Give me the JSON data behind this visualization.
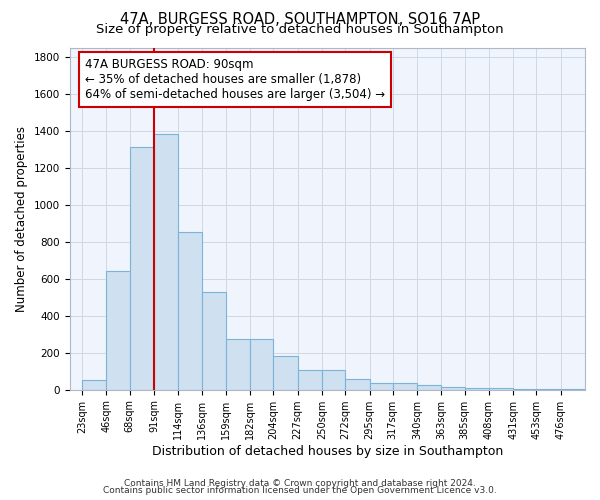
{
  "title": "47A, BURGESS ROAD, SOUTHAMPTON, SO16 7AP",
  "subtitle": "Size of property relative to detached houses in Southampton",
  "xlabel": "Distribution of detached houses by size in Southampton",
  "ylabel": "Number of detached properties",
  "footer_line1": "Contains HM Land Registry data © Crown copyright and database right 2024.",
  "footer_line2": "Contains public sector information licensed under the Open Government Licence v3.0.",
  "bar_color": "#cfe0f0",
  "bar_edge_color": "#7ab4d8",
  "bar_heights": [
    50,
    640,
    1310,
    1380,
    850,
    530,
    275,
    275,
    185,
    105,
    105,
    60,
    35,
    35,
    25,
    15,
    10,
    10,
    5,
    5,
    5
  ],
  "bin_left_edges": [
    23,
    46,
    68,
    91,
    114,
    136,
    159,
    182,
    204,
    227,
    250,
    272,
    295,
    317,
    340,
    363,
    385,
    408,
    431,
    453,
    476
  ],
  "bin_widths": [
    23,
    22,
    23,
    23,
    22,
    23,
    23,
    22,
    23,
    23,
    22,
    23,
    22,
    23,
    23,
    22,
    23,
    23,
    22,
    23,
    23
  ],
  "tick_labels": [
    "23sqm",
    "46sqm",
    "68sqm",
    "91sqm",
    "114sqm",
    "136sqm",
    "159sqm",
    "182sqm",
    "204sqm",
    "227sqm",
    "250sqm",
    "272sqm",
    "295sqm",
    "317sqm",
    "340sqm",
    "363sqm",
    "385sqm",
    "408sqm",
    "431sqm",
    "453sqm",
    "476sqm"
  ],
  "ylim": [
    0,
    1850
  ],
  "yticks": [
    0,
    200,
    400,
    600,
    800,
    1000,
    1200,
    1400,
    1600,
    1800
  ],
  "xlim_left": 11,
  "xlim_right": 499,
  "vline_x": 91,
  "annotation_text": "47A BURGESS ROAD: 90sqm\n← 35% of detached houses are smaller (1,878)\n64% of semi-detached houses are larger (3,504) →",
  "annotation_box_color": "#ffffff",
  "annotation_box_edge": "#cc0000",
  "bg_color": "#ffffff",
  "plot_bg_color": "#f0f4fc",
  "grid_color": "#d0d8e8",
  "title_fontsize": 10.5,
  "subtitle_fontsize": 9.5,
  "xlabel_fontsize": 9,
  "ylabel_fontsize": 8.5,
  "tick_fontsize": 7,
  "annotation_fontsize": 8.5,
  "footer_fontsize": 6.5
}
